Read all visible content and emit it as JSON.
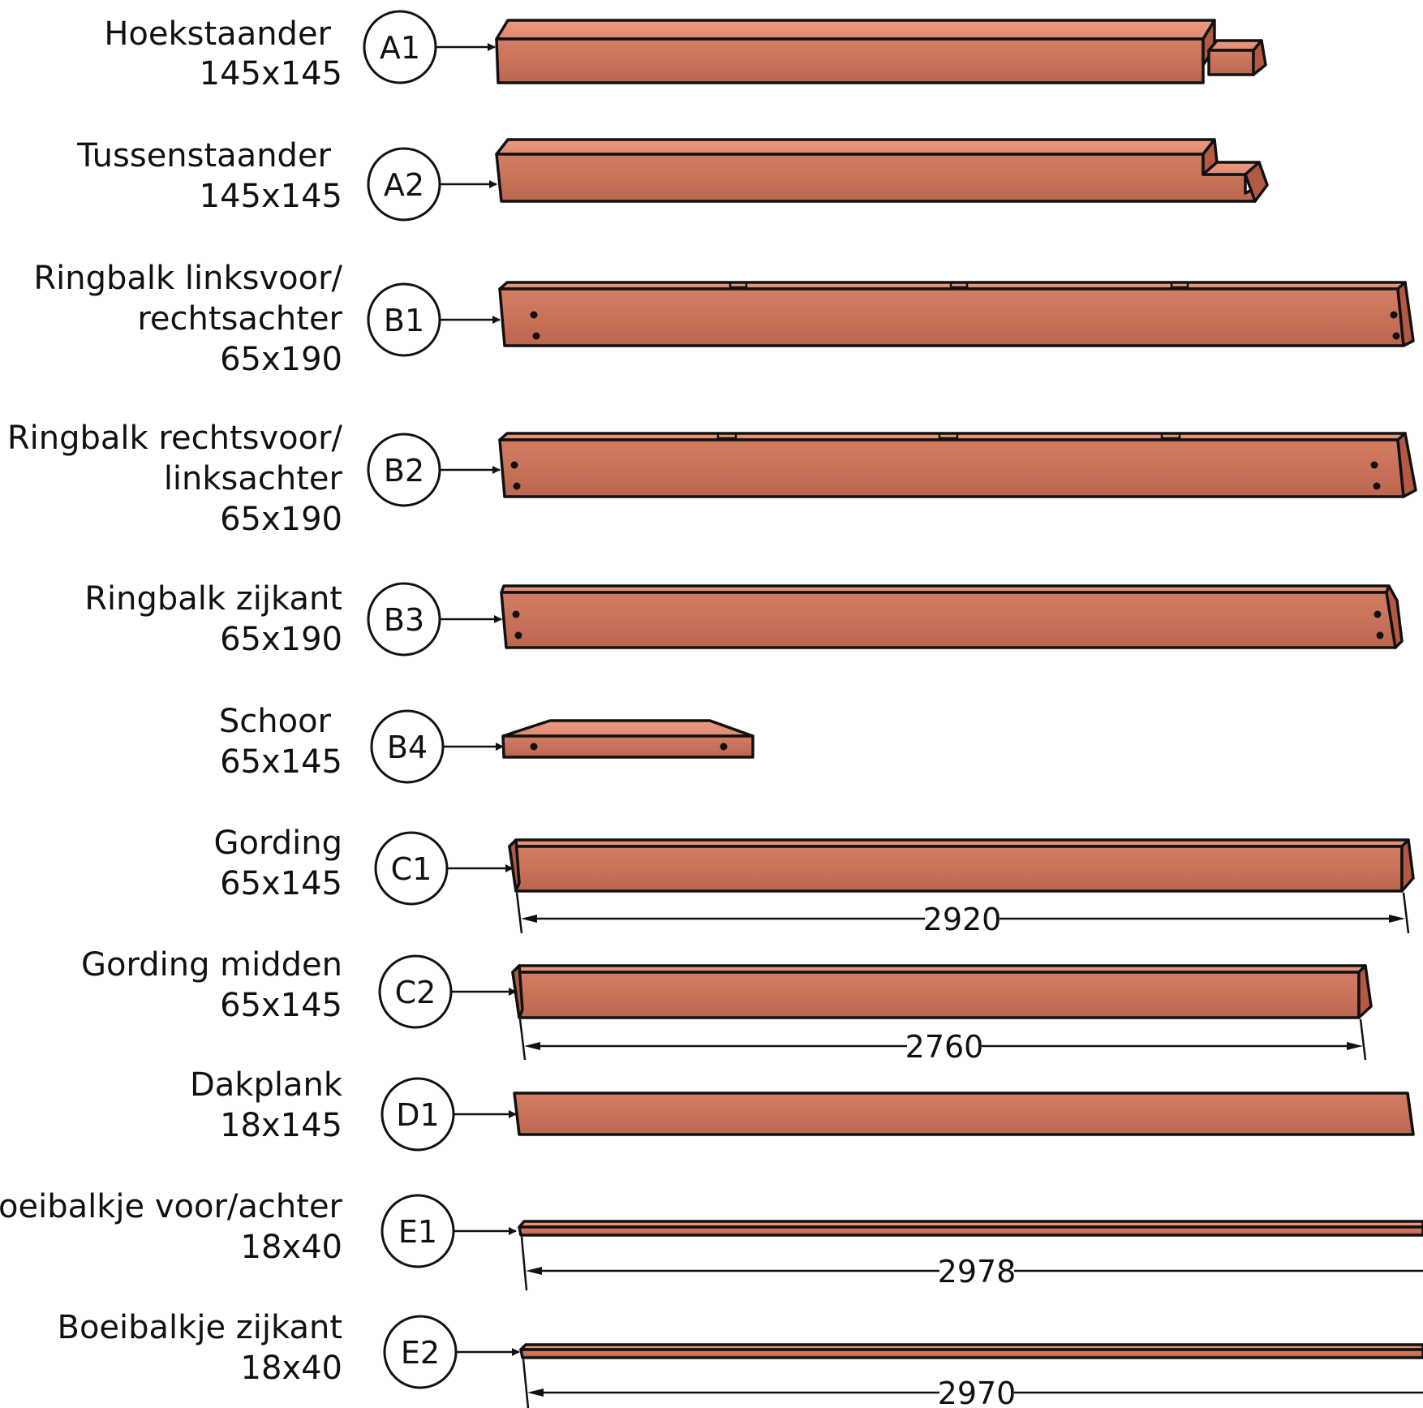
{
  "parts": [
    {
      "code": "A1",
      "name_lines": [
        "Hoekstaander",
        "145x145"
      ]
    },
    {
      "code": "A2",
      "name_lines": [
        "Tussenstaander",
        "145x145"
      ]
    },
    {
      "code": "B1",
      "name_lines": [
        "Ringbalk linksvoor/",
        "rechtsachter",
        "65x190"
      ]
    },
    {
      "code": "B2",
      "name_lines": [
        "Ringbalk rechtsvoor/",
        "linksachter",
        "65x190"
      ]
    },
    {
      "code": "B3",
      "name_lines": [
        "Ringbalk zijkant",
        "65x190"
      ]
    },
    {
      "code": "B4",
      "name_lines": [
        "Schoor",
        "65x145"
      ]
    },
    {
      "code": "C1",
      "name_lines": [
        "Gording",
        "65x145"
      ],
      "dimension": "2920"
    },
    {
      "code": "C2",
      "name_lines": [
        "Gording midden",
        "65x145"
      ],
      "dimension": "2760"
    },
    {
      "code": "D1",
      "name_lines": [
        "Dakplank",
        "18x145"
      ]
    },
    {
      "code": "E1",
      "name_lines": [
        "Boeibalkje voor/achter",
        "18x40"
      ],
      "dimension": "2978"
    },
    {
      "code": "E2",
      "name_lines": [
        "Boeibalkje zijkant",
        "18x40"
      ],
      "dimension": "2970"
    }
  ],
  "colors": {
    "wood_face": "#c9705a",
    "wood_top": "#e08a72",
    "wood_end": "#b65c46",
    "outline": "#111111"
  }
}
